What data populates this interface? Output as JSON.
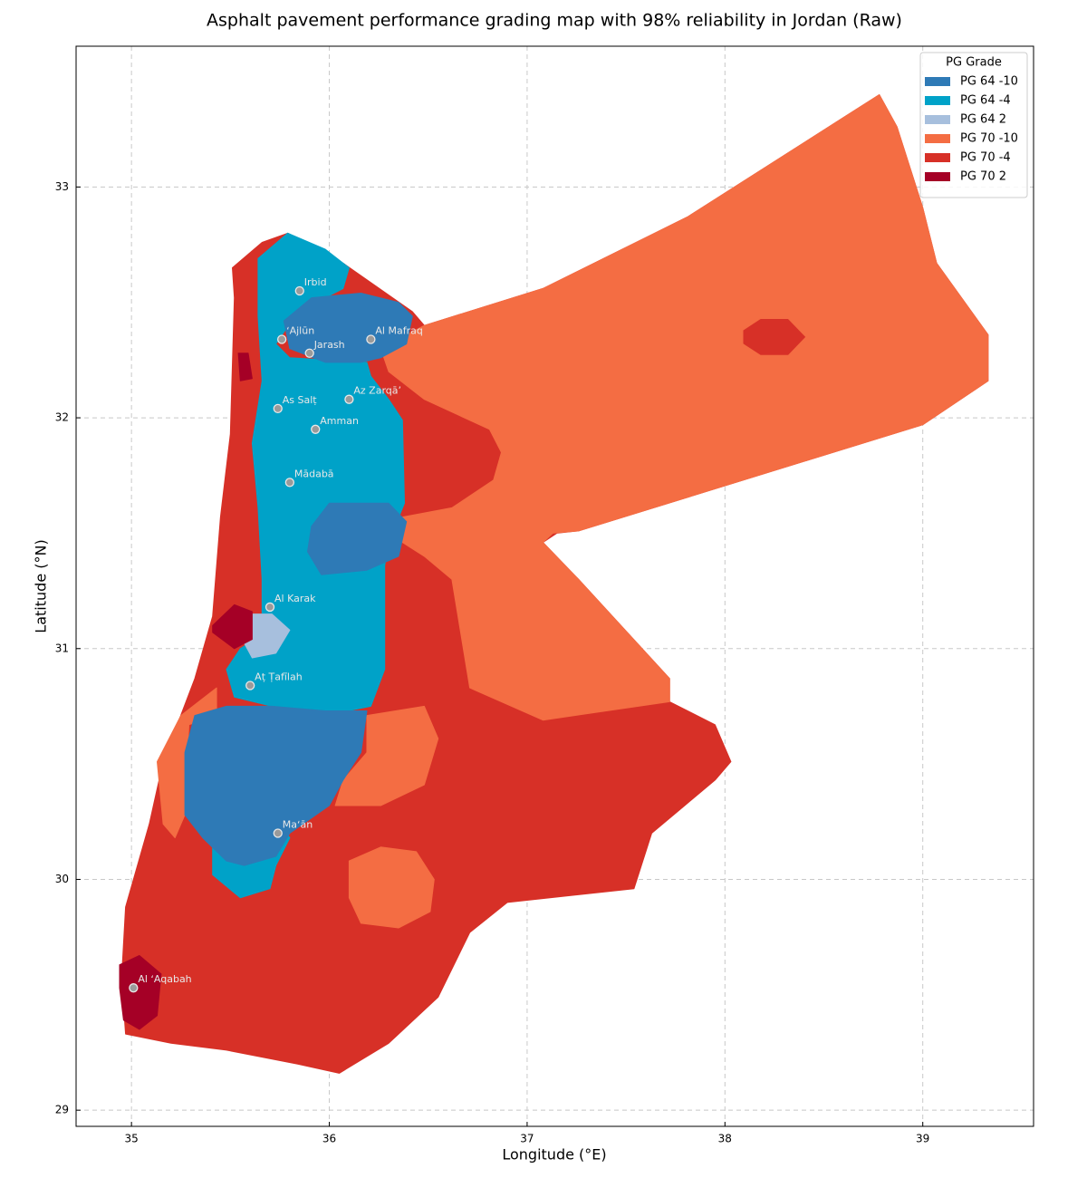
{
  "chart_data": {
    "type": "map",
    "title": "Asphalt pavement performance grading map with 98% reliability in Jordan (Raw)",
    "xlabel": "Longitude (°E)",
    "ylabel": "Latitude (°N)",
    "xlim": [
      34.72,
      39.56
    ],
    "ylim": [
      28.93,
      33.61
    ],
    "xticks": [
      35,
      36,
      37,
      38,
      39
    ],
    "yticks": [
      29,
      30,
      31,
      32,
      33
    ],
    "grid": true,
    "legend": {
      "title": "PG Grade",
      "position": "upper right"
    },
    "series": [
      {
        "name": "PG 64 -10",
        "color": "#2e7ab6",
        "regions": [
          [
            [
              35.77,
              32.42
            ],
            [
              35.91,
              32.52
            ],
            [
              36.16,
              32.54
            ],
            [
              36.35,
              32.5
            ],
            [
              36.42,
              32.44
            ],
            [
              36.39,
              32.32
            ],
            [
              36.26,
              32.26
            ],
            [
              36.16,
              32.24
            ],
            [
              35.98,
              32.24
            ],
            [
              35.8,
              32.3
            ]
          ],
          [
            [
              36.0,
              31.63
            ],
            [
              36.3,
              31.63
            ],
            [
              36.39,
              31.55
            ],
            [
              36.35,
              31.4
            ],
            [
              36.19,
              31.34
            ],
            [
              35.96,
              31.32
            ],
            [
              35.89,
              31.42
            ],
            [
              35.91,
              31.53
            ]
          ],
          [
            [
              35.32,
              30.71
            ],
            [
              35.48,
              30.75
            ],
            [
              35.71,
              30.75
            ],
            [
              35.98,
              30.73
            ],
            [
              36.19,
              30.73
            ],
            [
              36.16,
              30.55
            ],
            [
              36.07,
              30.43
            ],
            [
              36.0,
              30.32
            ],
            [
              35.8,
              30.2
            ],
            [
              35.73,
              30.1
            ],
            [
              35.57,
              30.06
            ],
            [
              35.48,
              30.08
            ],
            [
              35.36,
              30.18
            ],
            [
              35.27,
              30.28
            ],
            [
              35.27,
              30.55
            ]
          ]
        ]
      },
      {
        "name": "PG 64 -4",
        "color": "#00a2c8",
        "regions": [
          [
            [
              35.64,
              32.69
            ],
            [
              35.79,
              32.8
            ],
            [
              35.98,
              32.73
            ],
            [
              36.1,
              32.65
            ],
            [
              36.07,
              32.56
            ],
            [
              35.98,
              32.52
            ],
            [
              35.84,
              32.46
            ],
            [
              35.73,
              32.32
            ],
            [
              35.8,
              32.26
            ],
            [
              36.19,
              32.24
            ],
            [
              36.21,
              32.18
            ],
            [
              36.3,
              32.08
            ],
            [
              36.37,
              31.99
            ],
            [
              36.38,
              31.63
            ],
            [
              36.3,
              31.46
            ],
            [
              36.28,
              31.36
            ],
            [
              36.28,
              30.91
            ],
            [
              36.21,
              30.75
            ],
            [
              35.98,
              30.71
            ],
            [
              35.71,
              30.75
            ],
            [
              35.52,
              30.79
            ],
            [
              35.48,
              30.91
            ],
            [
              35.55,
              31.0
            ],
            [
              35.66,
              31.06
            ],
            [
              35.66,
              31.3
            ],
            [
              35.64,
              31.61
            ],
            [
              35.61,
              31.89
            ],
            [
              35.66,
              32.16
            ],
            [
              35.64,
              32.44
            ]
          ],
          [
            [
              35.27,
              30.28
            ],
            [
              35.41,
              30.16
            ],
            [
              35.41,
              30.02
            ],
            [
              35.55,
              29.92
            ],
            [
              35.7,
              29.96
            ],
            [
              35.73,
              30.06
            ],
            [
              35.8,
              30.18
            ],
            [
              35.71,
              30.28
            ]
          ]
        ]
      },
      {
        "name": "PG 64 2",
        "color": "#a7bfdd",
        "regions": [
          [
            [
              35.59,
              31.15
            ],
            [
              35.71,
              31.15
            ],
            [
              35.8,
              31.08
            ],
            [
              35.73,
              30.98
            ],
            [
              35.61,
              30.96
            ],
            [
              35.56,
              31.04
            ]
          ]
        ]
      },
      {
        "name": "PG 70 -10",
        "color": "#f46d43",
        "regions": [
          [
            [
              36.26,
              32.3
            ],
            [
              36.48,
              32.4
            ],
            [
              37.08,
              32.56
            ],
            [
              37.81,
              32.87
            ],
            [
              38.78,
              33.4
            ],
            [
              38.87,
              33.26
            ],
            [
              39.0,
              32.91
            ],
            [
              39.07,
              32.67
            ],
            [
              39.33,
              32.36
            ],
            [
              39.33,
              32.16
            ],
            [
              39.0,
              31.97
            ],
            [
              37.26,
              31.51
            ],
            [
              37.13,
              31.5
            ],
            [
              37.08,
              31.46
            ],
            [
              37.26,
              31.3
            ],
            [
              37.72,
              30.87
            ],
            [
              37.72,
              30.77
            ],
            [
              37.08,
              30.69
            ],
            [
              36.71,
              30.83
            ],
            [
              36.62,
              31.3
            ],
            [
              36.48,
              31.4
            ],
            [
              36.37,
              31.46
            ],
            [
              36.37,
              31.57
            ],
            [
              36.62,
              31.61
            ],
            [
              36.83,
              31.73
            ],
            [
              36.87,
              31.85
            ],
            [
              36.81,
              31.95
            ],
            [
              36.48,
              32.08
            ],
            [
              36.3,
              32.2
            ]
          ],
          [
            [
              38.09,
              32.38
            ],
            [
              38.18,
              32.43
            ],
            [
              38.32,
              32.43
            ],
            [
              38.41,
              32.35
            ],
            [
              38.32,
              32.27
            ],
            [
              38.18,
              32.27
            ],
            [
              38.09,
              32.32
            ]
          ],
          [
            [
              36.19,
              30.71
            ],
            [
              36.48,
              30.75
            ],
            [
              36.55,
              30.61
            ],
            [
              36.48,
              30.41
            ],
            [
              36.26,
              30.32
            ],
            [
              36.03,
              30.32
            ],
            [
              36.07,
              30.43
            ],
            [
              36.19,
              30.55
            ]
          ],
          [
            [
              36.1,
              30.08
            ],
            [
              36.26,
              30.14
            ],
            [
              36.44,
              30.12
            ],
            [
              36.53,
              30.0
            ],
            [
              36.51,
              29.86
            ],
            [
              36.35,
              29.79
            ],
            [
              36.16,
              29.81
            ],
            [
              36.1,
              29.92
            ]
          ],
          [
            [
              35.13,
              30.51
            ],
            [
              35.25,
              30.71
            ],
            [
              35.43,
              30.83
            ],
            [
              35.43,
              30.71
            ],
            [
              35.29,
              30.67
            ],
            [
              35.27,
              30.28
            ],
            [
              35.22,
              30.18
            ],
            [
              35.16,
              30.24
            ]
          ]
        ]
      },
      {
        "name": "PG 70 -4",
        "color": "#d73027",
        "regions": [
          [
            [
              35.51,
              32.65
            ],
            [
              35.66,
              32.76
            ],
            [
              35.79,
              32.8
            ],
            [
              36.07,
              32.67
            ],
            [
              36.42,
              32.46
            ],
            [
              36.48,
              32.4
            ],
            [
              37.08,
              32.56
            ],
            [
              37.81,
              32.87
            ],
            [
              38.78,
              33.4
            ],
            [
              38.87,
              33.26
            ],
            [
              39.0,
              32.91
            ],
            [
              39.07,
              32.67
            ],
            [
              39.33,
              32.36
            ],
            [
              39.33,
              32.16
            ],
            [
              39.0,
              31.97
            ],
            [
              37.26,
              31.51
            ],
            [
              37.15,
              31.5
            ],
            [
              37.08,
              31.46
            ],
            [
              37.26,
              31.3
            ],
            [
              37.72,
              30.87
            ],
            [
              37.72,
              30.77
            ],
            [
              37.95,
              30.67
            ],
            [
              38.03,
              30.51
            ],
            [
              37.95,
              30.43
            ],
            [
              37.63,
              30.2
            ],
            [
              37.54,
              29.96
            ],
            [
              36.9,
              29.9
            ],
            [
              36.71,
              29.77
            ],
            [
              36.55,
              29.49
            ],
            [
              36.3,
              29.29
            ],
            [
              36.05,
              29.16
            ],
            [
              35.84,
              29.2
            ],
            [
              35.48,
              29.26
            ],
            [
              35.2,
              29.29
            ],
            [
              34.97,
              29.33
            ],
            [
              34.95,
              29.57
            ],
            [
              34.97,
              29.88
            ],
            [
              35.09,
              30.24
            ],
            [
              35.16,
              30.51
            ],
            [
              35.32,
              30.87
            ],
            [
              35.41,
              31.14
            ],
            [
              35.45,
              31.57
            ],
            [
              35.5,
              31.93
            ],
            [
              35.52,
              32.52
            ]
          ]
        ]
      },
      {
        "name": "PG 70 2",
        "color": "#a50026",
        "regions": [
          [
            [
              35.41,
              31.1
            ],
            [
              35.52,
              31.19
            ],
            [
              35.61,
              31.16
            ],
            [
              35.61,
              31.04
            ],
            [
              35.52,
              31.0
            ],
            [
              35.41,
              31.07
            ]
          ],
          [
            [
              35.54,
              32.28
            ],
            [
              35.59,
              32.28
            ],
            [
              35.61,
              32.17
            ],
            [
              35.55,
              32.16
            ]
          ],
          [
            [
              34.94,
              29.63
            ],
            [
              35.04,
              29.67
            ],
            [
              35.15,
              29.59
            ],
            [
              35.13,
              29.41
            ],
            [
              35.04,
              29.35
            ],
            [
              34.96,
              29.39
            ],
            [
              34.94,
              29.53
            ]
          ]
        ]
      }
    ],
    "cities": [
      {
        "name": "Irbid",
        "lon": 35.85,
        "lat": 32.55
      },
      {
        "name": "ʻAjlūn",
        "lon": 35.76,
        "lat": 32.34
      },
      {
        "name": "Jarash",
        "lon": 35.9,
        "lat": 32.28
      },
      {
        "name": "Al Mafraq",
        "lon": 36.21,
        "lat": 32.34
      },
      {
        "name": "As Salṭ",
        "lon": 35.74,
        "lat": 32.04
      },
      {
        "name": "Az Zarqāʼ",
        "lon": 36.1,
        "lat": 32.08
      },
      {
        "name": "Amman",
        "lon": 35.93,
        "lat": 31.95
      },
      {
        "name": "Mādabā",
        "lon": 35.8,
        "lat": 31.72
      },
      {
        "name": "Al Karak",
        "lon": 35.7,
        "lat": 31.18
      },
      {
        "name": "Aṭ Ṭafīlah",
        "lon": 35.6,
        "lat": 30.84
      },
      {
        "name": "Maʻān",
        "lon": 35.74,
        "lat": 30.2
      },
      {
        "name": "Al ʻAqabah",
        "lon": 35.01,
        "lat": 29.53
      }
    ]
  }
}
